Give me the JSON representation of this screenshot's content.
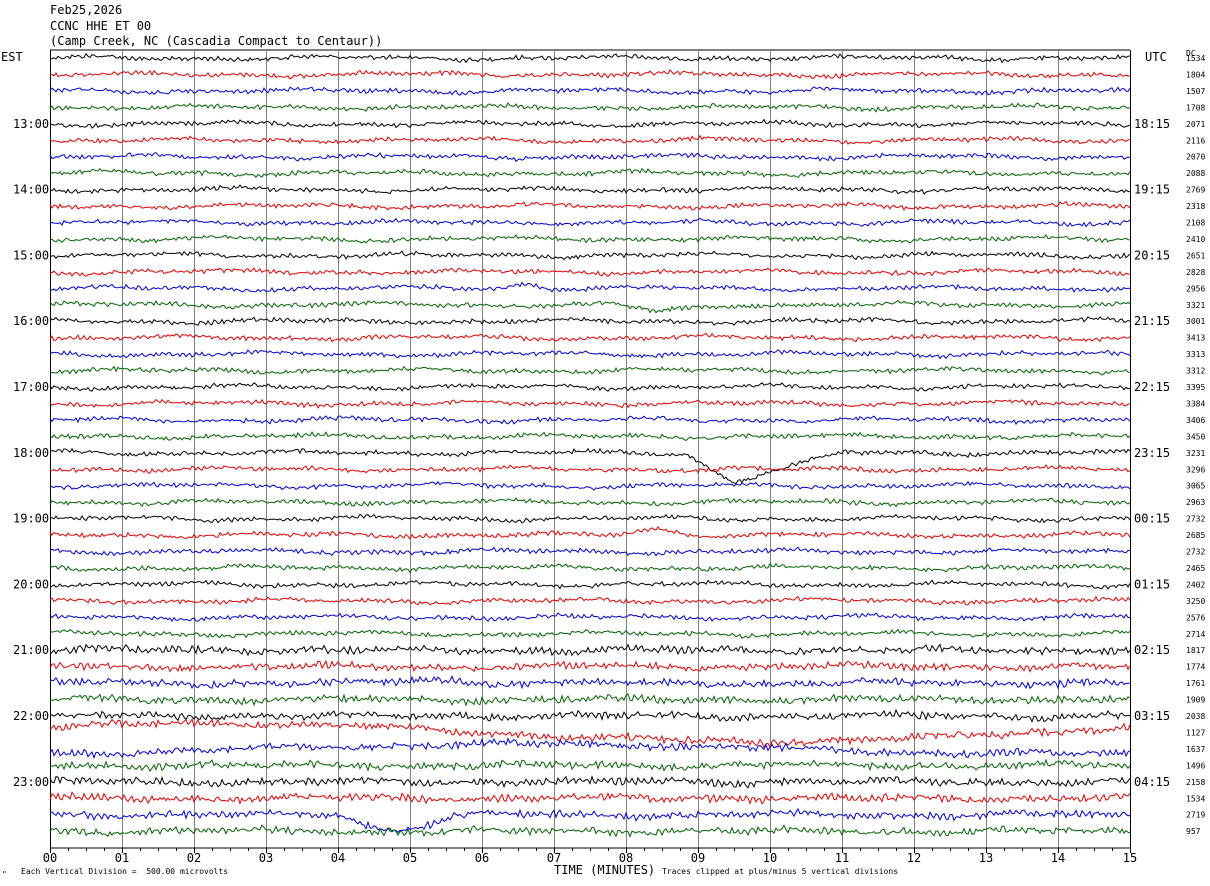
{
  "header": {
    "date": "Feb25,2026",
    "channel": "CCNC HHE ET 00",
    "station": "(Camp Creek, NC (Cascadia Compact to Centaur))"
  },
  "left_timezone": "EST",
  "right_timezone": "UTC",
  "dc_header": "DC",
  "footer": {
    "scale_note": "Each Vertical Division =  500.00 microvolts",
    "clip_note": "Traces clipped at plus/minus 5 vertical divisions",
    "corner_mark": "\""
  },
  "chart_data": {
    "type": "line",
    "subtype": "helicorder",
    "xlabel": "TIME (MINUTES)",
    "x_ticks": [
      "00",
      "01",
      "02",
      "03",
      "04",
      "05",
      "06",
      "07",
      "08",
      "09",
      "10",
      "11",
      "12",
      "13",
      "14",
      "15"
    ],
    "xlim": [
      0,
      15
    ],
    "trace_minutes": 15,
    "trace_colors": [
      "#000000",
      "#e00000",
      "#0000d0",
      "#006400"
    ],
    "left_hour_labels": [
      {
        "row": 4,
        "text": "13:00"
      },
      {
        "row": 8,
        "text": "14:00"
      },
      {
        "row": 12,
        "text": "15:00"
      },
      {
        "row": 16,
        "text": "16:00"
      },
      {
        "row": 20,
        "text": "17:00"
      },
      {
        "row": 24,
        "text": "18:00"
      },
      {
        "row": 28,
        "text": "19:00"
      },
      {
        "row": 32,
        "text": "20:00"
      },
      {
        "row": 36,
        "text": "21:00"
      },
      {
        "row": 40,
        "text": "22:00"
      },
      {
        "row": 44,
        "text": "23:00"
      }
    ],
    "right_hour_labels": [
      {
        "row": 4,
        "text": "18:15"
      },
      {
        "row": 8,
        "text": "19:15"
      },
      {
        "row": 12,
        "text": "20:15"
      },
      {
        "row": 16,
        "text": "21:15"
      },
      {
        "row": 20,
        "text": "22:15"
      },
      {
        "row": 24,
        "text": "23:15"
      },
      {
        "row": 28,
        "text": "00:15"
      },
      {
        "row": 32,
        "text": "01:15"
      },
      {
        "row": 36,
        "text": "02:15"
      },
      {
        "row": 40,
        "text": "03:15"
      },
      {
        "row": 44,
        "text": "04:15"
      }
    ],
    "dc_offsets": [
      "1534",
      "1804",
      "1507",
      "1708",
      "2071",
      "2116",
      "2070",
      "2088",
      "2769",
      "2318",
      "2108",
      "2410",
      "2651",
      "2828",
      "2956",
      "3321",
      "3001",
      "3413",
      "3313",
      "3312",
      "3395",
      "3384",
      "3406",
      "3450",
      "3231",
      "3296",
      "3065",
      "2963",
      "2732",
      "2685",
      "2732",
      "2465",
      "2402",
      "3250",
      "2576",
      "2714",
      "1817",
      "1774",
      "1761",
      "1909",
      "2038",
      "1127",
      "1637",
      "1496",
      "2158",
      "1534",
      "2719",
      "957"
    ]
  }
}
